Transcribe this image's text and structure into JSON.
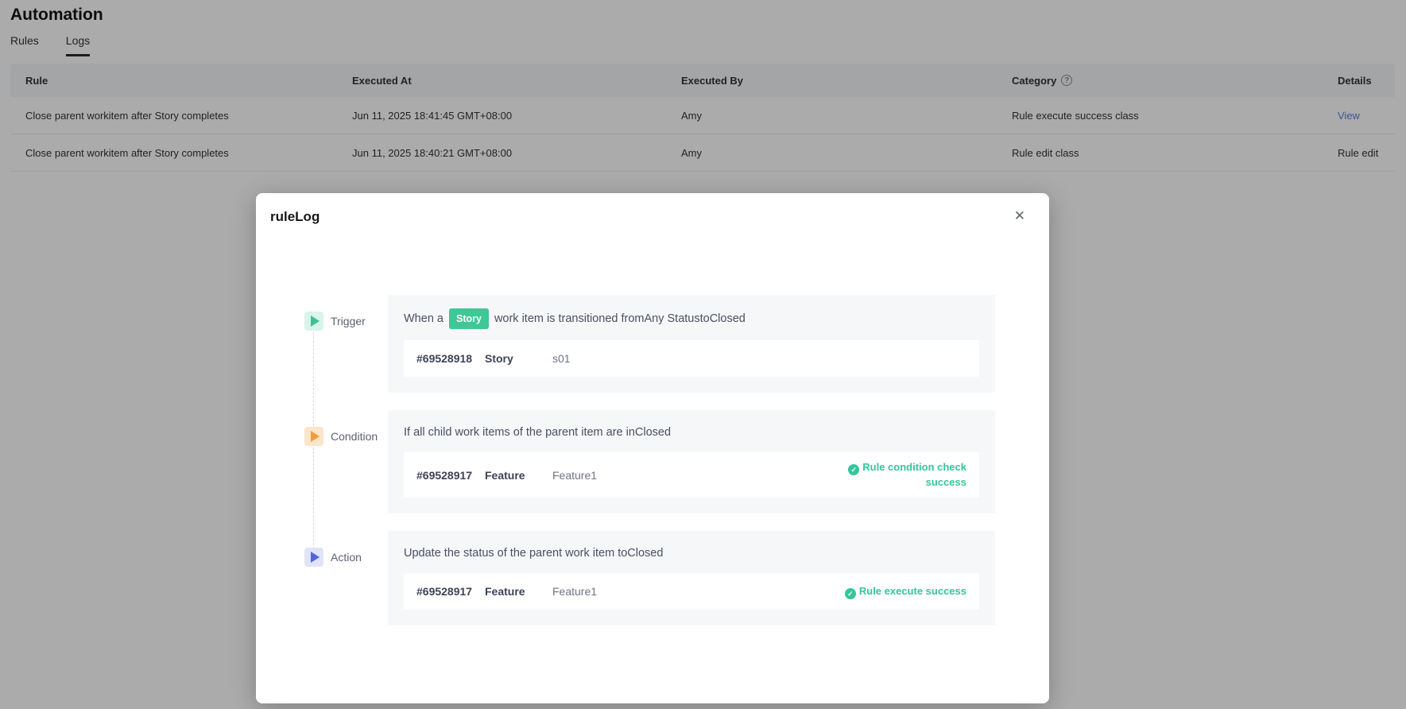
{
  "page": {
    "title": "Automation",
    "tabs": [
      {
        "label": "Rules",
        "active": false
      },
      {
        "label": "Logs",
        "active": true
      }
    ]
  },
  "table": {
    "headers": {
      "rule": "Rule",
      "executed_at": "Executed At",
      "executed_by": "Executed By",
      "category": "Category",
      "category_help_icon": "question-circle-icon",
      "details": "Details"
    },
    "rows": [
      {
        "rule": "Close parent workitem after Story completes",
        "executed_at": "Jun 11, 2025 18:41:45 GMT+08:00",
        "executed_by": "Amy",
        "category": "Rule execute success class",
        "details": "View"
      },
      {
        "rule": "Close parent workitem after Story completes",
        "executed_at": "Jun 11, 2025 18:40:21 GMT+08:00",
        "executed_by": "Amy",
        "category": "Rule edit class",
        "details": "Rule edit"
      }
    ]
  },
  "modal": {
    "title": "ruleLog",
    "close_glyph": "✕",
    "sections": [
      {
        "label": "Trigger",
        "desc_prefix": "When a",
        "badge": "Story",
        "desc_suffix": "work item is transitioned fromAny StatustoClosed",
        "item": {
          "id": "#69528918",
          "type": "Story",
          "name": "s01",
          "status": ""
        }
      },
      {
        "label": "Condition",
        "desc": "If all child work items of the parent item are inClosed",
        "item": {
          "id": "#69528917",
          "type": "Feature",
          "name": "Feature1",
          "status": "Rule condition check success"
        }
      },
      {
        "label": "Action",
        "desc": "Update the status of the parent work item toClosed",
        "item": {
          "id": "#69528917",
          "type": "Feature",
          "name": "Feature1",
          "status": "Rule execute success"
        }
      }
    ],
    "status_check_glyph": "✓",
    "help_glyph": "?"
  },
  "colors": {
    "accent_green": "#3fc796",
    "success_text": "#35c59b",
    "trigger_icon_bg": "#d9f4ea",
    "trigger_icon_fg": "#3ac295",
    "condition_icon_bg": "#fce5cb",
    "condition_icon_fg": "#f59c36",
    "action_icon_bg": "#dfe4f9",
    "action_icon_fg": "#5066e0",
    "link_blue": "#5e7ce0",
    "panel_bg": "#f6f7f9",
    "overlay": "rgba(0,0,0,0.33)"
  }
}
